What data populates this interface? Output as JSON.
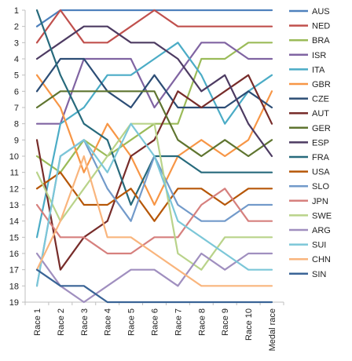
{
  "chart_data": {
    "type": "line",
    "title": "",
    "xlabel": "",
    "ylabel": "",
    "ylim": [
      1,
      19
    ],
    "y_reversed": true,
    "grid": false,
    "legend_position": "right",
    "y_ticks": [
      "1",
      "2",
      "3",
      "4",
      "5",
      "6",
      "7",
      "8",
      "9",
      "10",
      "11",
      "12",
      "13",
      "14",
      "15",
      "16",
      "17",
      "18",
      "19"
    ],
    "categories": [
      "Race 1",
      "Race 2",
      "Race 3",
      "Race 4",
      "Race 5",
      "Race 6",
      "Race 7",
      "Race 8",
      "Race 9",
      "Race 10",
      "Medal race"
    ],
    "series": [
      {
        "name": "AUS",
        "color": "#4f81bd",
        "values": [
          2,
          1,
          1,
          1,
          1,
          1,
          1,
          1,
          1,
          1,
          1
        ]
      },
      {
        "name": "NED",
        "color": "#c0504d",
        "values": [
          3,
          1,
          3,
          3,
          2,
          1,
          2,
          2,
          2,
          2,
          2
        ]
      },
      {
        "name": "BRA",
        "color": "#9bbb59",
        "values": [
          10,
          11,
          9,
          10,
          9,
          8,
          8,
          4,
          4,
          3,
          3
        ]
      },
      {
        "name": "ISR",
        "color": "#8064a2",
        "values": [
          8,
          8,
          4,
          4,
          4,
          7,
          5,
          3,
          3,
          4,
          4
        ]
      },
      {
        "name": "ITA",
        "color": "#4bacc6",
        "values": [
          15,
          8,
          7,
          5,
          5,
          4,
          3,
          5,
          8,
          6,
          5
        ]
      },
      {
        "name": "GBR",
        "color": "#f79646",
        "values": [
          5,
          7,
          11,
          8,
          10,
          13,
          10,
          9,
          10,
          9,
          6
        ]
      },
      {
        "name": "CZE",
        "color": "#2c4d75",
        "values": [
          6,
          4,
          4,
          6,
          7,
          5,
          7,
          7,
          7,
          6,
          7
        ]
      },
      {
        "name": "AUT",
        "color": "#772c2a",
        "values": [
          9,
          17,
          15,
          14,
          10,
          9,
          6,
          7,
          6,
          5,
          8
        ]
      },
      {
        "name": "GER",
        "color": "#5f7530",
        "values": [
          7,
          6,
          6,
          6,
          6,
          6,
          9,
          10,
          9,
          10,
          9
        ]
      },
      {
        "name": "ESP",
        "color": "#4d3b62",
        "values": [
          4,
          3,
          2,
          2,
          3,
          3,
          4,
          6,
          5,
          8,
          10
        ]
      },
      {
        "name": "FRA",
        "color": "#276a7c",
        "values": [
          1,
          5,
          8,
          9,
          13,
          10,
          10,
          11,
          11,
          11,
          11
        ]
      },
      {
        "name": "USA",
        "color": "#b65708",
        "values": [
          12,
          11,
          13,
          13,
          12,
          14,
          12,
          12,
          13,
          12,
          12
        ]
      },
      {
        "name": "SLO",
        "color": "#729aca",
        "values": [
          18,
          10,
          9,
          12,
          14,
          10,
          13,
          14,
          14,
          13,
          13
        ]
      },
      {
        "name": "JPN",
        "color": "#d6807e",
        "values": [
          13,
          15,
          15,
          16,
          16,
          15,
          15,
          13,
          12,
          14,
          14
        ]
      },
      {
        "name": "SWE",
        "color": "#b9d38a",
        "values": [
          11,
          14,
          12,
          10,
          8,
          8,
          16,
          17,
          15,
          15,
          15
        ]
      },
      {
        "name": "ARG",
        "color": "#a08fbf",
        "values": [
          16,
          18,
          19,
          18,
          17,
          17,
          18,
          16,
          17,
          16,
          16
        ]
      },
      {
        "name": "SUI",
        "color": "#7cc7d8",
        "values": [
          18,
          10,
          9,
          11,
          8,
          10,
          14,
          15,
          16,
          17,
          17
        ]
      },
      {
        "name": "CHN",
        "color": "#f9b57d",
        "values": [
          17,
          14,
          10,
          15,
          15,
          16,
          17,
          18,
          18,
          18,
          18
        ]
      },
      {
        "name": "SIN",
        "color": "#3a6496",
        "values": [
          17,
          18,
          18,
          19,
          19,
          19,
          19,
          19,
          19,
          19,
          19
        ]
      }
    ]
  }
}
